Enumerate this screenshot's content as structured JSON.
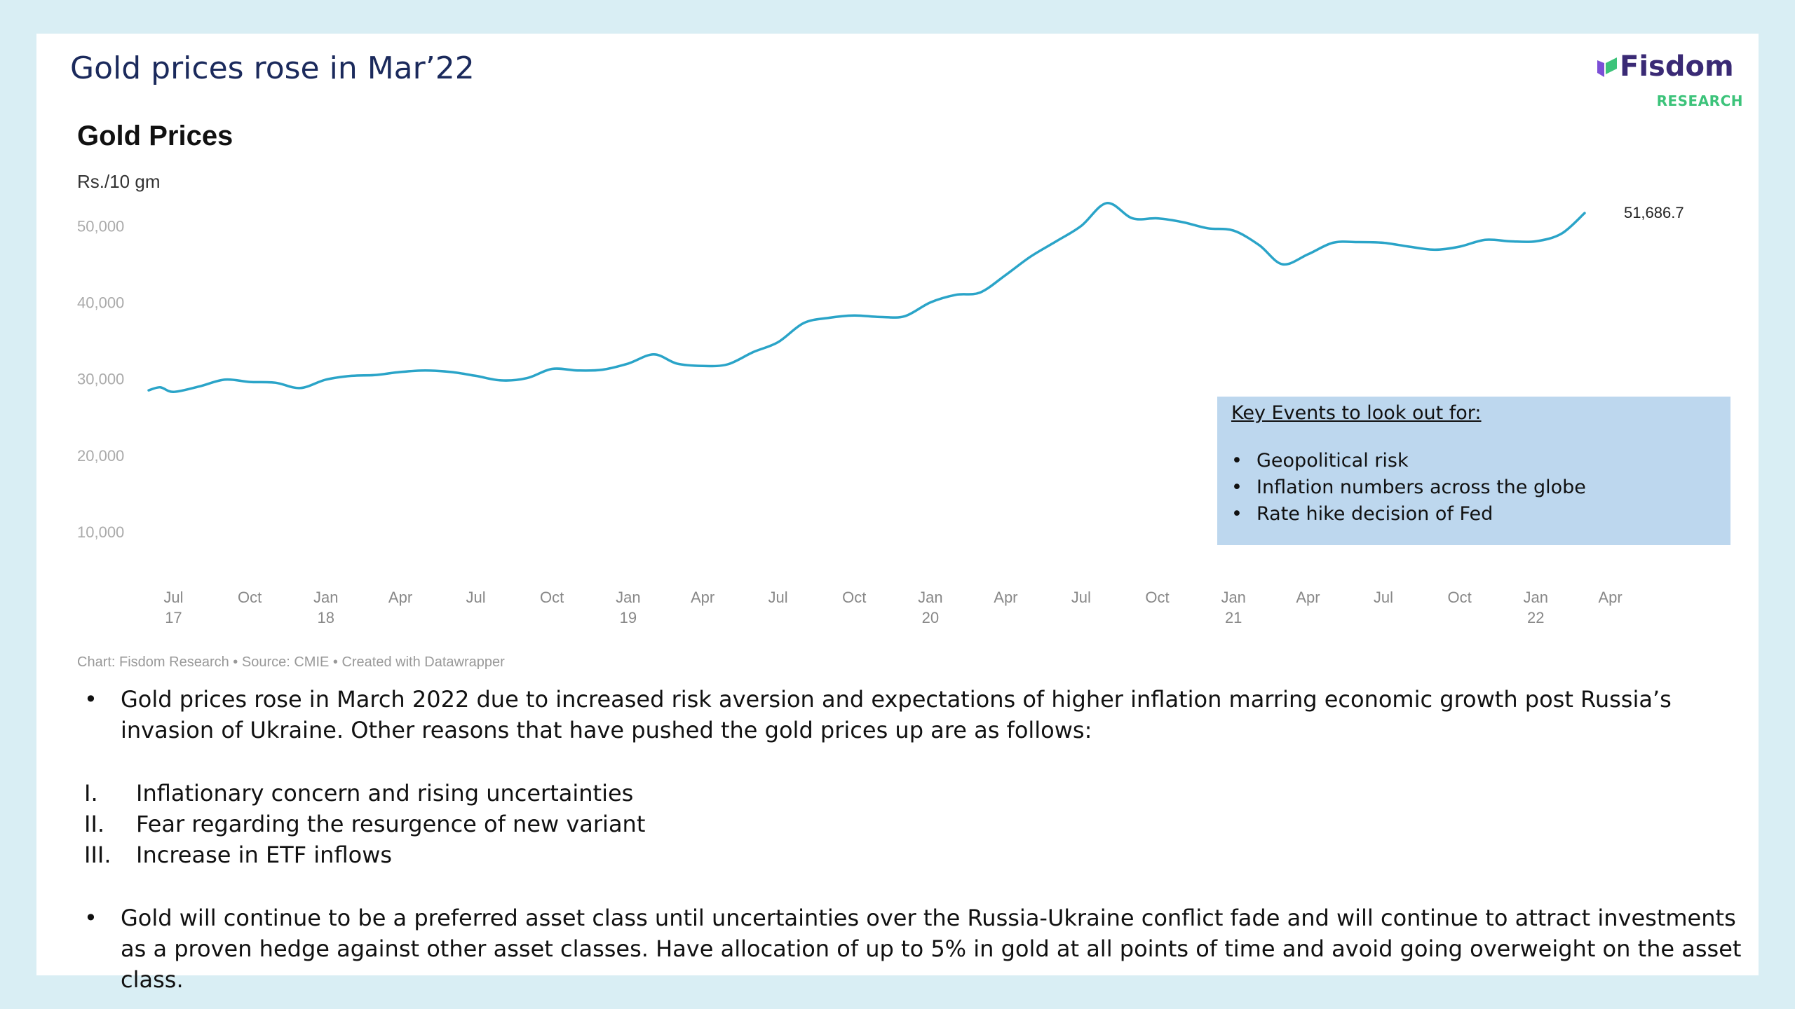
{
  "slide": {
    "title": "Gold prices rose in Mar’22",
    "logo": {
      "name": "Fisdom",
      "sub": "RESEARCH"
    }
  },
  "colors": {
    "line": "#2aa4c8",
    "slide_title": "#1b2a5c",
    "events_box": "#bdd7ee",
    "logo_purple": "#3a2a75",
    "logo_green": "#3cc37a",
    "frame": "#d9eef4"
  },
  "chart_data": {
    "type": "line",
    "title": "Gold Prices",
    "ylabel": "Rs./10 gm",
    "ylim": [
      0,
      55000
    ],
    "yticks": [
      10000,
      20000,
      30000,
      40000,
      50000
    ],
    "ytick_labels": [
      "10,000",
      "20,000",
      "30,000",
      "40,000",
      "50,000"
    ],
    "xlim": [
      "2017-06-01",
      "2022-05-01"
    ],
    "xticks": [
      {
        "date": "2017-07-01",
        "label": "Jul",
        "year": "17"
      },
      {
        "date": "2017-10-01",
        "label": "Oct",
        "year": ""
      },
      {
        "date": "2018-01-01",
        "label": "Jan",
        "year": "18"
      },
      {
        "date": "2018-04-01",
        "label": "Apr",
        "year": ""
      },
      {
        "date": "2018-07-01",
        "label": "Jul",
        "year": ""
      },
      {
        "date": "2018-10-01",
        "label": "Oct",
        "year": ""
      },
      {
        "date": "2019-01-01",
        "label": "Jan",
        "year": "19"
      },
      {
        "date": "2019-04-01",
        "label": "Apr",
        "year": ""
      },
      {
        "date": "2019-07-01",
        "label": "Jul",
        "year": ""
      },
      {
        "date": "2019-10-01",
        "label": "Oct",
        "year": ""
      },
      {
        "date": "2020-01-01",
        "label": "Jan",
        "year": "20"
      },
      {
        "date": "2020-04-01",
        "label": "Apr",
        "year": ""
      },
      {
        "date": "2020-07-01",
        "label": "Jul",
        "year": ""
      },
      {
        "date": "2020-10-01",
        "label": "Oct",
        "year": ""
      },
      {
        "date": "2021-01-01",
        "label": "Jan",
        "year": "21"
      },
      {
        "date": "2021-04-01",
        "label": "Apr",
        "year": ""
      },
      {
        "date": "2021-07-01",
        "label": "Jul",
        "year": ""
      },
      {
        "date": "2021-10-01",
        "label": "Oct",
        "year": ""
      },
      {
        "date": "2022-01-01",
        "label": "Jan",
        "year": "22"
      },
      {
        "date": "2022-04-01",
        "label": "Apr",
        "year": ""
      }
    ],
    "series": [
      {
        "end_label": "51,686.7",
        "points": [
          [
            "2017-06-01",
            28500
          ],
          [
            "2017-06-15",
            28900
          ],
          [
            "2017-07-01",
            28300
          ],
          [
            "2017-08-01",
            29000
          ],
          [
            "2017-09-01",
            29900
          ],
          [
            "2017-10-01",
            29600
          ],
          [
            "2017-11-01",
            29500
          ],
          [
            "2017-12-01",
            28800
          ],
          [
            "2018-01-01",
            29900
          ],
          [
            "2018-02-01",
            30400
          ],
          [
            "2018-03-01",
            30500
          ],
          [
            "2018-04-01",
            30900
          ],
          [
            "2018-05-01",
            31100
          ],
          [
            "2018-06-01",
            30900
          ],
          [
            "2018-07-01",
            30400
          ],
          [
            "2018-08-01",
            29800
          ],
          [
            "2018-09-01",
            30100
          ],
          [
            "2018-10-01",
            31300
          ],
          [
            "2018-11-01",
            31100
          ],
          [
            "2018-12-01",
            31200
          ],
          [
            "2019-01-01",
            32000
          ],
          [
            "2019-02-01",
            33200
          ],
          [
            "2019-03-01",
            32000
          ],
          [
            "2019-04-01",
            31700
          ],
          [
            "2019-05-01",
            31900
          ],
          [
            "2019-06-01",
            33500
          ],
          [
            "2019-07-01",
            34800
          ],
          [
            "2019-08-01",
            37300
          ],
          [
            "2019-09-01",
            38000
          ],
          [
            "2019-10-01",
            38300
          ],
          [
            "2019-11-01",
            38100
          ],
          [
            "2019-12-01",
            38200
          ],
          [
            "2020-01-01",
            40000
          ],
          [
            "2020-02-01",
            41000
          ],
          [
            "2020-03-01",
            41300
          ],
          [
            "2020-04-01",
            43600
          ],
          [
            "2020-05-01",
            46000
          ],
          [
            "2020-06-01",
            48000
          ],
          [
            "2020-07-01",
            50000
          ],
          [
            "2020-08-01",
            53000
          ],
          [
            "2020-09-01",
            51000
          ],
          [
            "2020-10-01",
            51000
          ],
          [
            "2020-11-01",
            50500
          ],
          [
            "2020-12-01",
            49700
          ],
          [
            "2021-01-01",
            49400
          ],
          [
            "2021-02-01",
            47500
          ],
          [
            "2021-03-01",
            45000
          ],
          [
            "2021-04-01",
            46300
          ],
          [
            "2021-05-01",
            47800
          ],
          [
            "2021-06-01",
            47900
          ],
          [
            "2021-07-01",
            47800
          ],
          [
            "2021-08-01",
            47300
          ],
          [
            "2021-09-01",
            46900
          ],
          [
            "2021-10-01",
            47300
          ],
          [
            "2021-11-01",
            48200
          ],
          [
            "2021-12-01",
            48000
          ],
          [
            "2022-01-01",
            48000
          ],
          [
            "2022-02-01",
            49000
          ],
          [
            "2022-03-01",
            51686.7
          ]
        ]
      }
    ],
    "grid": false,
    "legend": "none",
    "annotation": {
      "heading": "Key Events to look out for:",
      "items": [
        "Geopolitical risk",
        "Inflation numbers across the globe",
        "Rate hike decision of Fed"
      ]
    },
    "credit": "Chart: Fisdom Research • Source: CMIE • Created with Datawrapper"
  },
  "commentary": {
    "bullet1": "Gold prices rose in March 2022 due to increased risk aversion and expectations of higher inflation marring economic growth post Russia’s invasion of Ukraine. Other reasons that have pushed the gold prices up are as follows:",
    "reasons": [
      {
        "num": "I.",
        "text": "Inflationary concern and rising uncertainties"
      },
      {
        "num": "II.",
        "text": "Fear regarding the resurgence of new variant"
      },
      {
        "num": "III.",
        "text": "Increase in ETF inflows"
      }
    ],
    "bullet2": "Gold will continue to be a preferred asset class until uncertainties over the Russia-Ukraine conflict fade and will continue to attract investments as a proven hedge against other asset classes. Have allocation of up to 5% in gold at all points of time and avoid going overweight on the asset class."
  }
}
